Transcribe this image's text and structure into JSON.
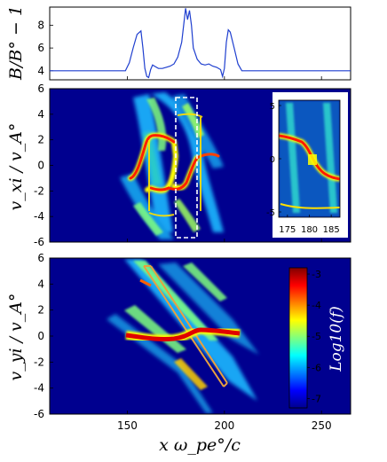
{
  "chart_data": [
    {
      "panel": "top",
      "type": "line",
      "ylabel": "B/B° − 1",
      "ylim": [
        3.2,
        9.6
      ],
      "yticks": [
        "4",
        "6",
        "8"
      ],
      "xlim": [
        110,
        265
      ],
      "series": [
        {
          "color": "#1f3fcf",
          "x": [
            110,
            149,
            151,
            153,
            155,
            157,
            158,
            159,
            160,
            161,
            162,
            163,
            164,
            166,
            168,
            170,
            172,
            174,
            176,
            178,
            179,
            180,
            181,
            182,
            183,
            184,
            186,
            188,
            190,
            192,
            194,
            196,
            198,
            199,
            200,
            201,
            202,
            203,
            205,
            207,
            209,
            265
          ],
          "y": [
            4.0,
            4.0,
            4.7,
            6.0,
            7.2,
            7.5,
            6.0,
            4.2,
            3.5,
            3.4,
            4.1,
            4.5,
            4.4,
            4.2,
            4.2,
            4.3,
            4.4,
            4.6,
            5.2,
            6.5,
            8.0,
            9.5,
            8.5,
            9.3,
            8.0,
            6.0,
            5.0,
            4.6,
            4.5,
            4.6,
            4.4,
            4.3,
            4.1,
            3.5,
            4.2,
            6.5,
            7.6,
            7.4,
            6.0,
            4.6,
            4.0,
            4.0
          ]
        }
      ]
    },
    {
      "panel": "middle",
      "type": "heatmap",
      "ylabel": "v_xi / v_A°",
      "ylim": [
        -6,
        6
      ],
      "yticks": [
        "6",
        "4",
        "2",
        "0",
        "-2",
        "-4",
        "-6"
      ],
      "xlim": [
        110,
        265
      ],
      "highlight_box": {
        "x": [
          173,
          187
        ],
        "y": [
          -5.5,
          5.5
        ],
        "style": "white dashed"
      },
      "inset": {
        "xticks": [
          "175",
          "180",
          "185"
        ],
        "yticks": [
          "5",
          "0",
          "-5"
        ],
        "xlim": [
          173,
          187
        ],
        "ylim": [
          -5.5,
          5.5
        ]
      }
    },
    {
      "panel": "bottom",
      "type": "heatmap",
      "ylabel": "v_yi / v_A°",
      "xlabel": "x ω_pe°/c",
      "ylim": [
        -6,
        6
      ],
      "yticks": [
        "6",
        "4",
        "2",
        "0",
        "-2",
        "-4",
        "-6"
      ],
      "xticks": [
        "150",
        "200",
        "250"
      ],
      "xlim": [
        110,
        265
      ],
      "colorbar": {
        "label": "Log10(f)",
        "ticks": [
          "-3",
          "-4",
          "-5",
          "-6",
          "-7"
        ],
        "range": [
          -7.3,
          -2.8
        ],
        "colormap": "jet"
      }
    }
  ],
  "labels": {
    "top_ylabel": "B/B° − 1",
    "mid_ylabel": "v_xi / v_A°",
    "bot_ylabel": "v_yi / v_A°",
    "xlabel": "x ω_pe°/c",
    "colorbar_label": "Log10(f)"
  },
  "colors": {
    "background_field": "#00008f",
    "line": "#1f3fcf",
    "highlight_box": "#ffffff"
  }
}
